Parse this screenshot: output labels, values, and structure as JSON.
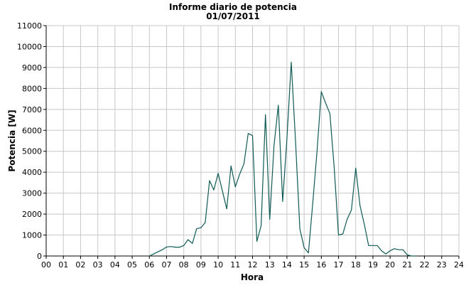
{
  "chart_data": {
    "type": "line",
    "title": "Informe diario de potencia",
    "subtitle": "01/07/2011",
    "xlabel": "Hora",
    "ylabel": "Potencia [W]",
    "xlim": [
      0,
      24
    ],
    "ylim": [
      0,
      11000
    ],
    "xticks": [
      "00",
      "01",
      "02",
      "03",
      "04",
      "05",
      "06",
      "07",
      "08",
      "09",
      "10",
      "11",
      "12",
      "13",
      "14",
      "15",
      "16",
      "17",
      "18",
      "19",
      "20",
      "21",
      "22",
      "23",
      "24"
    ],
    "yticks": [
      0,
      1000,
      2000,
      3000,
      4000,
      5000,
      6000,
      7000,
      8000,
      9000,
      10000,
      11000
    ],
    "grid": true,
    "color": "#0f5a55",
    "series": [
      {
        "x": [
          6.0,
          6.25,
          6.5,
          6.75,
          7.0,
          7.25,
          7.5,
          7.75,
          8.0,
          8.25,
          8.5,
          8.75,
          9.0,
          9.25,
          9.5,
          9.75,
          10.0,
          10.25,
          10.5,
          10.75,
          11.0,
          11.25,
          11.5,
          11.75,
          12.0,
          12.25,
          12.5,
          12.75,
          13.0,
          13.25,
          13.5,
          13.75,
          14.0,
          14.25,
          14.5,
          14.75,
          15.0,
          15.25,
          15.5,
          15.75,
          16.0,
          16.25,
          16.5,
          16.75,
          17.0,
          17.25,
          17.5,
          17.75,
          18.0,
          18.25,
          18.5,
          18.75,
          19.0,
          19.25,
          19.5,
          19.75,
          20.0,
          20.25,
          20.5,
          20.75,
          21.0,
          21.25,
          21.5
        ],
        "y": [
          0,
          100,
          200,
          300,
          430,
          450,
          420,
          420,
          500,
          780,
          600,
          1300,
          1350,
          1600,
          3600,
          3150,
          3950,
          3100,
          2250,
          4300,
          3300,
          3900,
          4400,
          5850,
          5750,
          700,
          1450,
          6750,
          1750,
          5300,
          7200,
          2600,
          5600,
          9250,
          5500,
          1300,
          400,
          150,
          2500,
          5000,
          7850,
          7300,
          6800,
          4200,
          1000,
          1050,
          1750,
          2200,
          4200,
          2400,
          1500,
          500,
          500,
          500,
          250,
          100,
          250,
          350,
          300,
          300,
          50,
          0,
          0
        ]
      }
    ]
  }
}
